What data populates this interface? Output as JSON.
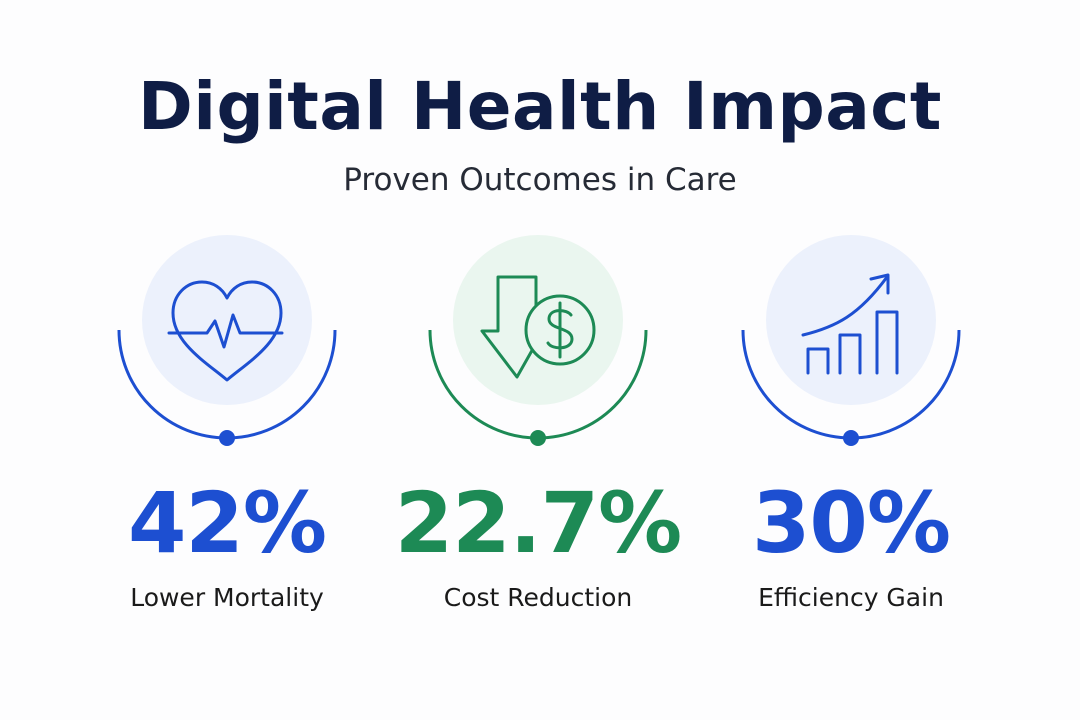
{
  "header": {
    "title": "Digital Health Impact",
    "subtitle": "Proven Outcomes in Care"
  },
  "stats": [
    {
      "value": "42%",
      "label": "Lower Mortality",
      "icon": "heart-pulse-icon",
      "color": "#1d4fd1",
      "circle": "#ecf1fc"
    },
    {
      "value": "22.7%",
      "label": "Cost Reduction",
      "icon": "cost-down-dollar-icon",
      "color": "#1d8a55",
      "circle": "#eaf6ef"
    },
    {
      "value": "30%",
      "label": "Efficiency Gain",
      "icon": "growth-chart-icon",
      "color": "#1d4fd1",
      "circle": "#ecf1fc"
    }
  ]
}
